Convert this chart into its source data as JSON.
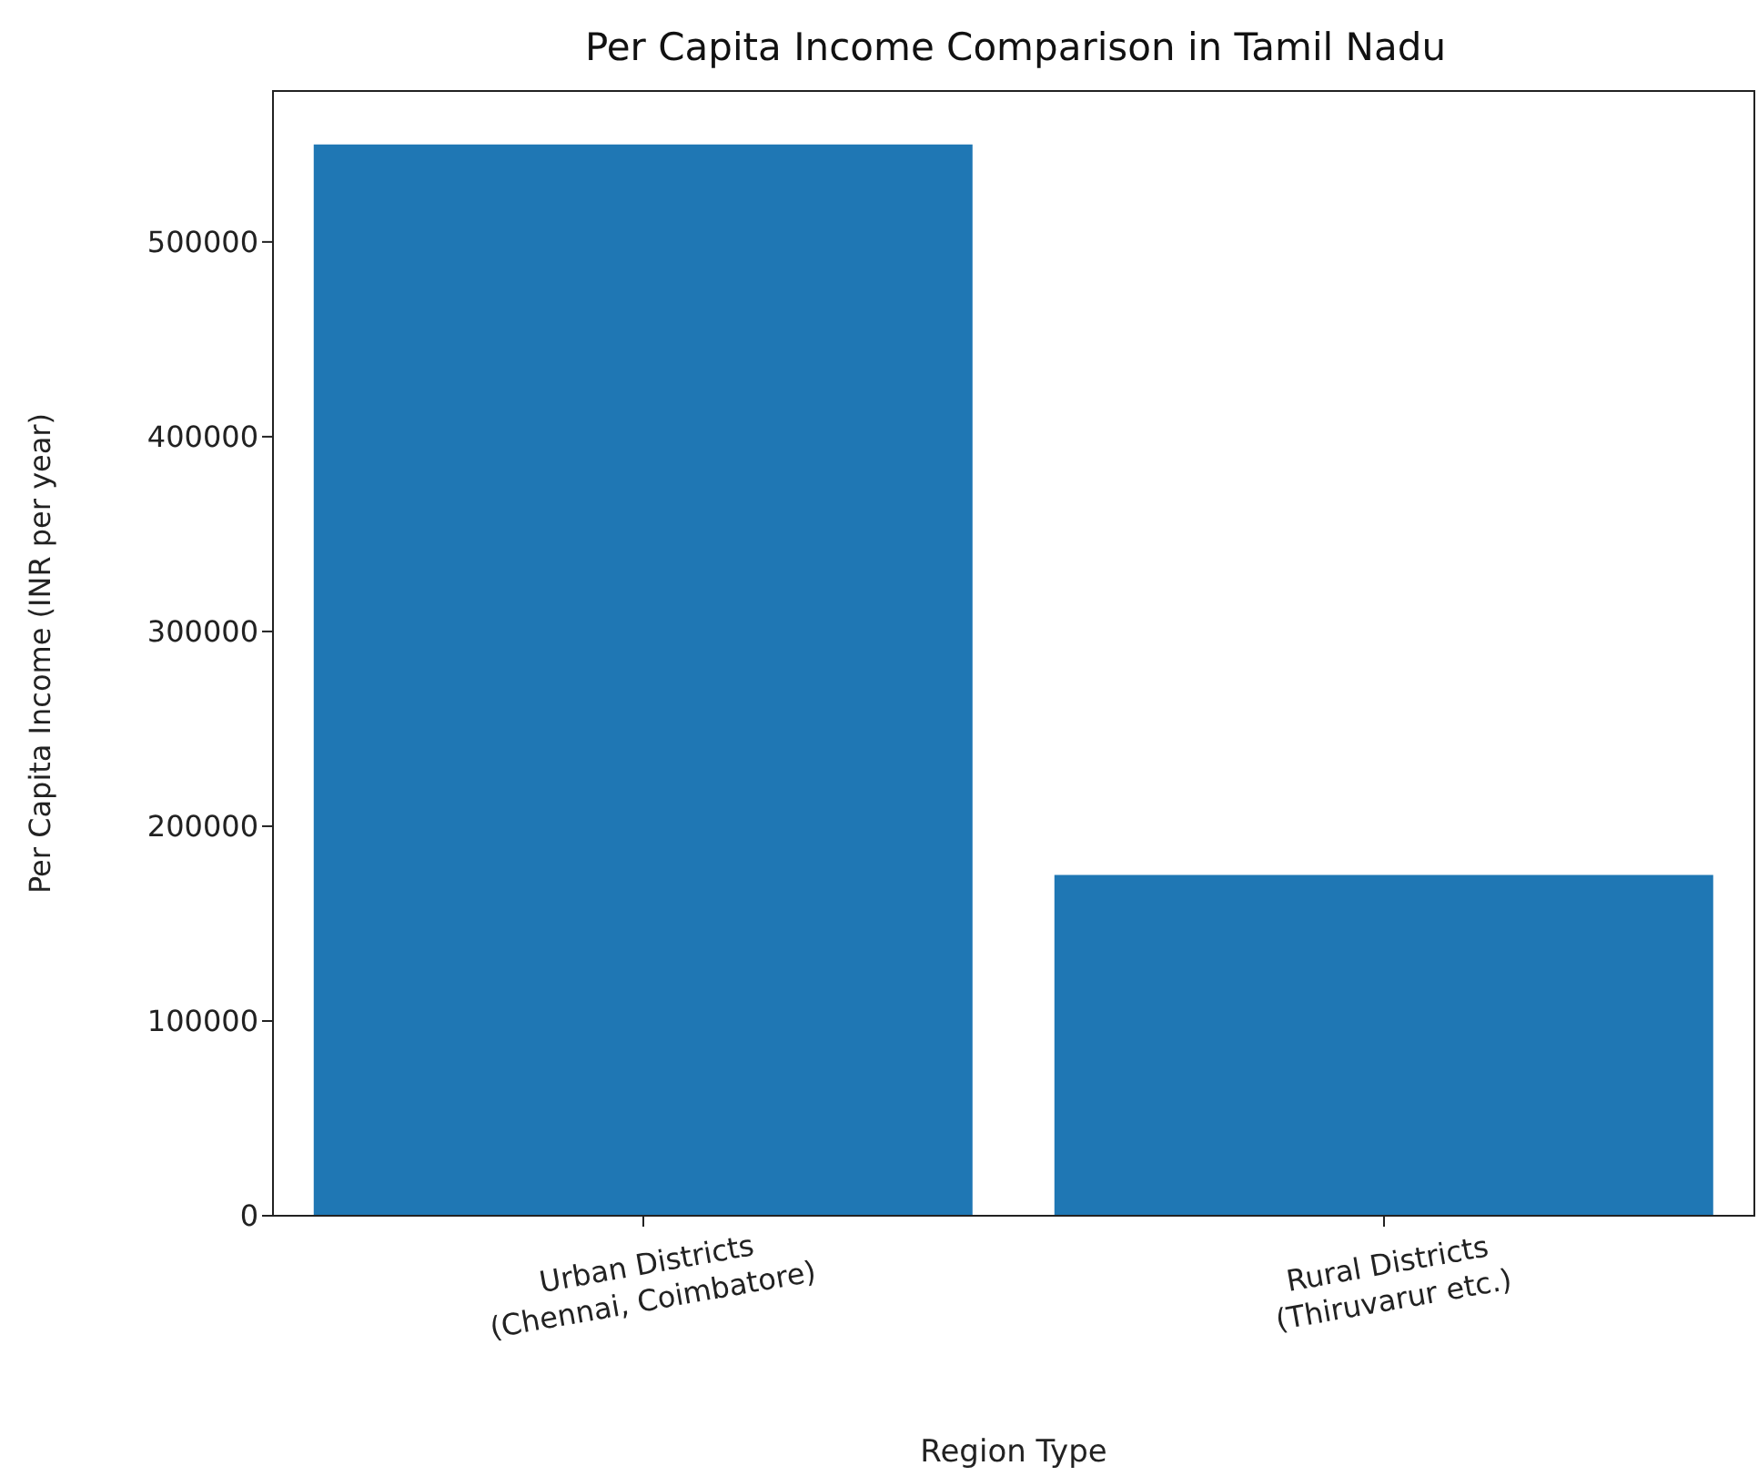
{
  "chart_data": {
    "type": "bar",
    "title": "Per Capita Income Comparison in Tamil Nadu",
    "xlabel": "Region Type",
    "ylabel": "Per Capita Income (INR per year)",
    "categories": [
      "Urban Districts\n(Chennai, Coimbatore)",
      "Rural Districts\n(Thiruvarur etc.)"
    ],
    "values": [
      550000,
      175000
    ],
    "color": "#1f77b4",
    "ylim": [
      0,
      577500
    ],
    "yticks": [
      0,
      100000,
      200000,
      300000,
      400000,
      500000
    ],
    "grid": false,
    "legend": false
  }
}
